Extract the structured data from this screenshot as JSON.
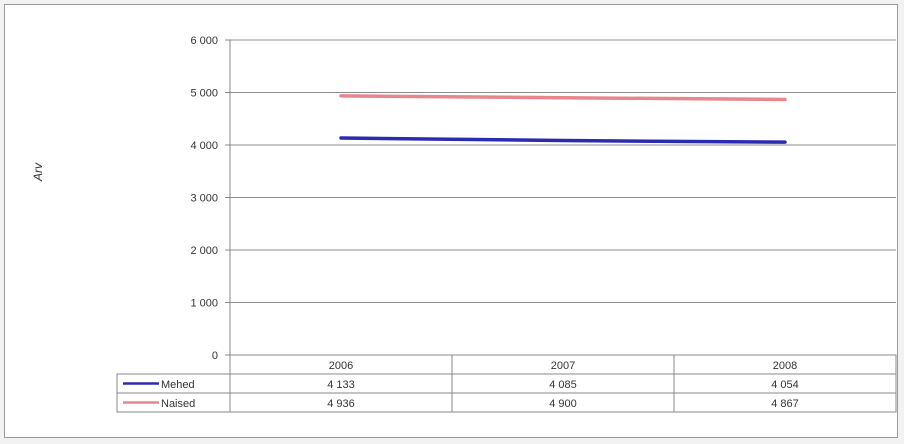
{
  "chart_data": {
    "type": "line",
    "title": "",
    "xlabel": "",
    "ylabel": "Arv",
    "categories": [
      "2006",
      "2007",
      "2008"
    ],
    "ylim": [
      0,
      6000
    ],
    "yticks": [
      0,
      1000,
      2000,
      3000,
      4000,
      5000,
      6000
    ],
    "ytick_labels": [
      "0",
      "1 000",
      "2 000",
      "3 000",
      "4 000",
      "5 000",
      "6 000"
    ],
    "grid": true,
    "legend": "data-table",
    "series": [
      {
        "name": "Mehed",
        "color": "#2b2bb0",
        "values": [
          4133,
          4085,
          4054
        ],
        "labels": [
          "4 133",
          "4 085",
          "4 054"
        ]
      },
      {
        "name": "Naised",
        "color": "#e8868e",
        "values": [
          4936,
          4900,
          4867
        ],
        "labels": [
          "4 936",
          "4 900",
          "4 867"
        ]
      }
    ]
  }
}
